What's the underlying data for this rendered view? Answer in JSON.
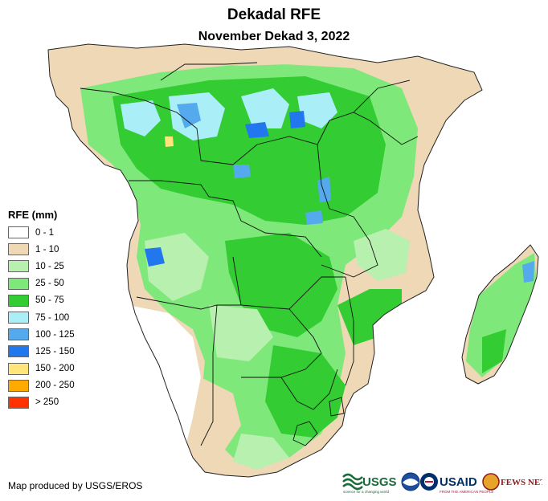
{
  "title": "Dekadal RFE",
  "subtitle": "November Dekad 3, 2022",
  "legend": {
    "title": "RFE (mm)",
    "items": [
      {
        "label": "0 - 1",
        "color": "#ffffff"
      },
      {
        "label": "1 - 10",
        "color": "#eed8b6"
      },
      {
        "label": "10 - 25",
        "color": "#b8f0b0"
      },
      {
        "label": "25 - 50",
        "color": "#7ee87a"
      },
      {
        "label": "50 - 75",
        "color": "#33cc33"
      },
      {
        "label": "75 - 100",
        "color": "#aaeef8"
      },
      {
        "label": "100 - 125",
        "color": "#55aaee"
      },
      {
        "label": "125 - 150",
        "color": "#2277ee"
      },
      {
        "label": "150 - 200",
        "color": "#ffe57a"
      },
      {
        "label": "200 - 250",
        "color": "#ffaa00"
      },
      {
        "label": "> 250",
        "color": "#ff3300"
      }
    ]
  },
  "credit": "Map produced by USGS/EROS",
  "logos": {
    "usgs": "USGS",
    "usgs_tagline": "science for a changing world",
    "usaid": "USAID",
    "usaid_tagline": "FROM THE AMERICAN PEOPLE",
    "fewsnet": "FEWS NET"
  }
}
